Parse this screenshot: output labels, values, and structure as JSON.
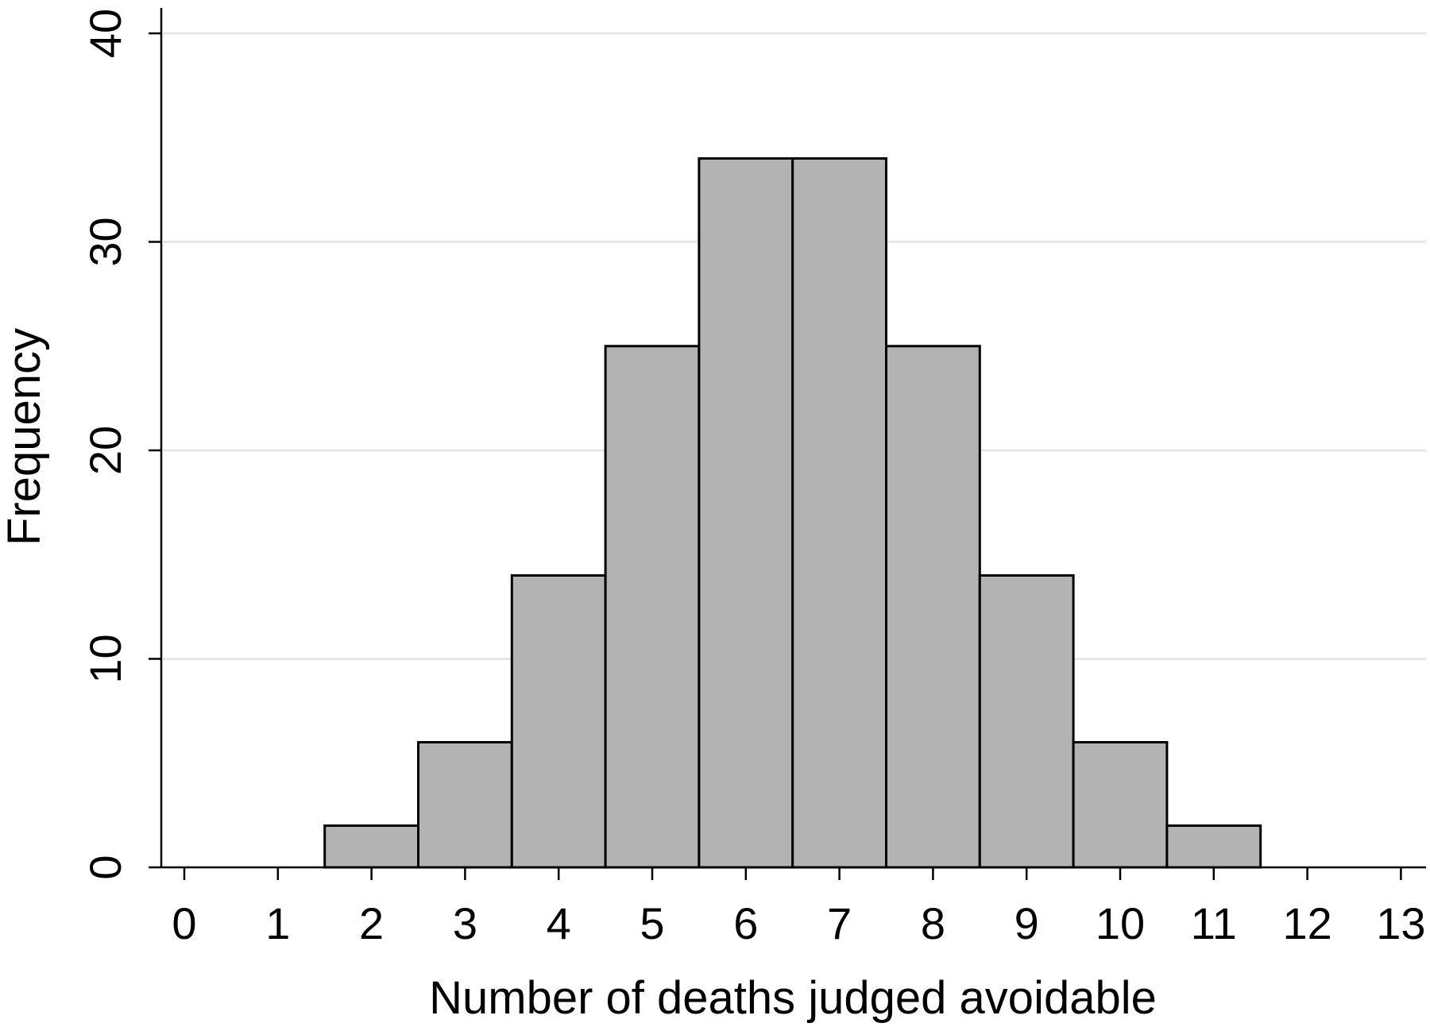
{
  "chart_data": {
    "type": "bar",
    "categories": [
      "2",
      "3",
      "4",
      "5",
      "6",
      "7",
      "8",
      "9",
      "10",
      "11"
    ],
    "x": [
      2,
      3,
      4,
      5,
      6,
      7,
      8,
      9,
      10,
      11
    ],
    "values": [
      2,
      6,
      14,
      25,
      34,
      34,
      25,
      14,
      6,
      2
    ],
    "xlabel": "Number of deaths judged avoidable",
    "ylabel": "Frequency",
    "xlim": [
      0,
      13
    ],
    "ylim": [
      0,
      40
    ],
    "x_ticks": [
      "0",
      "1",
      "2",
      "3",
      "4",
      "5",
      "6",
      "7",
      "8",
      "9",
      "10",
      "11",
      "12",
      "13"
    ],
    "y_ticks": [
      "0",
      "10",
      "20",
      "30",
      "40"
    ],
    "grid": "horizontal",
    "legend": "none",
    "bar_color": "#b3b3b3",
    "bar_edge_color": "#000000",
    "grid_color": "#e3e3e3"
  }
}
